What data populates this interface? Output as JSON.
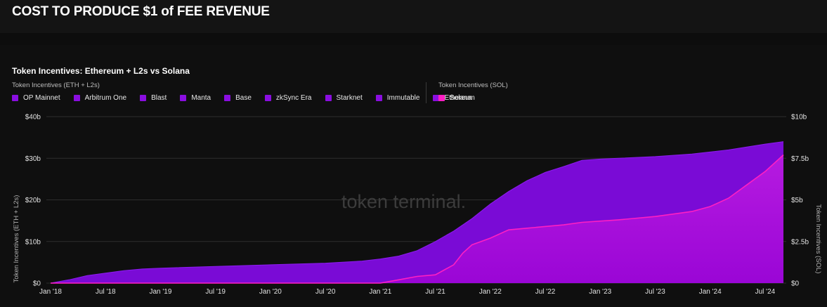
{
  "header": {
    "title": "COST TO PRODUCE $1 of FEE REVENUE"
  },
  "chart_data": {
    "type": "area",
    "title": "Token Incentives: Ethereum + L2s vs Solana",
    "watermark": "token terminal.",
    "legend_groups": [
      {
        "label": "Token Incentives (ETH + L2s)",
        "items": [
          "OP Mainnet",
          "Arbitrum One",
          "Blast",
          "Manta",
          "Base",
          "zkSync Era",
          "Starknet",
          "Immutable",
          "Ethereum"
        ],
        "color": "#8a0ee0"
      },
      {
        "label": "Token Incentives (SOL)",
        "items": [
          "Solana"
        ],
        "color": "#ff1fc3"
      }
    ],
    "ylabel_left": "Token Incentives (ETH + L2s)",
    "ylabel_right": "Token Incentives (SOL)",
    "y_left_ticks": [
      "$0",
      "$10b",
      "$20b",
      "$30b",
      "$40b"
    ],
    "y_right_ticks": [
      "$0",
      "$2.5b",
      "$5b",
      "$7.5b",
      "$10b"
    ],
    "ylim_left": [
      0,
      40
    ],
    "ylim_right": [
      0,
      10
    ],
    "x_ticks": [
      "Jan '18",
      "Jul '18",
      "Jan '19",
      "Jul '19",
      "Jan '20",
      "Jul '20",
      "Jan '21",
      "Jul '21",
      "Jan '22",
      "Jul '22",
      "Jan '23",
      "Jul '23",
      "Jan '24",
      "Jul '24"
    ],
    "x_unit": "months since Jan '18",
    "xlim": [
      0,
      80
    ],
    "grid": true,
    "series": [
      {
        "name": "Ethereum + L2s",
        "axis": "left",
        "unit": "$b",
        "color": "#7a0bd6",
        "points": [
          [
            0,
            0
          ],
          [
            2,
            0.8
          ],
          [
            4,
            1.8
          ],
          [
            6,
            2.4
          ],
          [
            8,
            3.0
          ],
          [
            10,
            3.4
          ],
          [
            12,
            3.6
          ],
          [
            18,
            4.0
          ],
          [
            24,
            4.4
          ],
          [
            30,
            4.8
          ],
          [
            34,
            5.3
          ],
          [
            36,
            5.8
          ],
          [
            38,
            6.5
          ],
          [
            40,
            7.8
          ],
          [
            42,
            10.0
          ],
          [
            44,
            12.5
          ],
          [
            46,
            15.5
          ],
          [
            48,
            19.0
          ],
          [
            50,
            22.0
          ],
          [
            52,
            24.6
          ],
          [
            54,
            26.6
          ],
          [
            56,
            28.0
          ],
          [
            58,
            29.5
          ],
          [
            60,
            29.8
          ],
          [
            62,
            30.0
          ],
          [
            66,
            30.4
          ],
          [
            70,
            31.0
          ],
          [
            74,
            32.0
          ],
          [
            78,
            33.4
          ],
          [
            80,
            34.0
          ]
        ]
      },
      {
        "name": "Solana",
        "axis": "right",
        "unit": "$b",
        "color": "#ff1fc3",
        "points": [
          [
            0,
            0
          ],
          [
            36,
            0
          ],
          [
            38,
            0.2
          ],
          [
            40,
            0.4
          ],
          [
            42,
            0.5
          ],
          [
            44,
            1.1
          ],
          [
            45,
            1.8
          ],
          [
            46,
            2.3
          ],
          [
            48,
            2.7
          ],
          [
            50,
            3.2
          ],
          [
            52,
            3.3
          ],
          [
            56,
            3.5
          ],
          [
            58,
            3.65
          ],
          [
            62,
            3.8
          ],
          [
            66,
            4.0
          ],
          [
            70,
            4.3
          ],
          [
            72,
            4.6
          ],
          [
            74,
            5.1
          ],
          [
            76,
            5.9
          ],
          [
            78,
            6.7
          ],
          [
            80,
            7.7
          ]
        ]
      }
    ]
  }
}
